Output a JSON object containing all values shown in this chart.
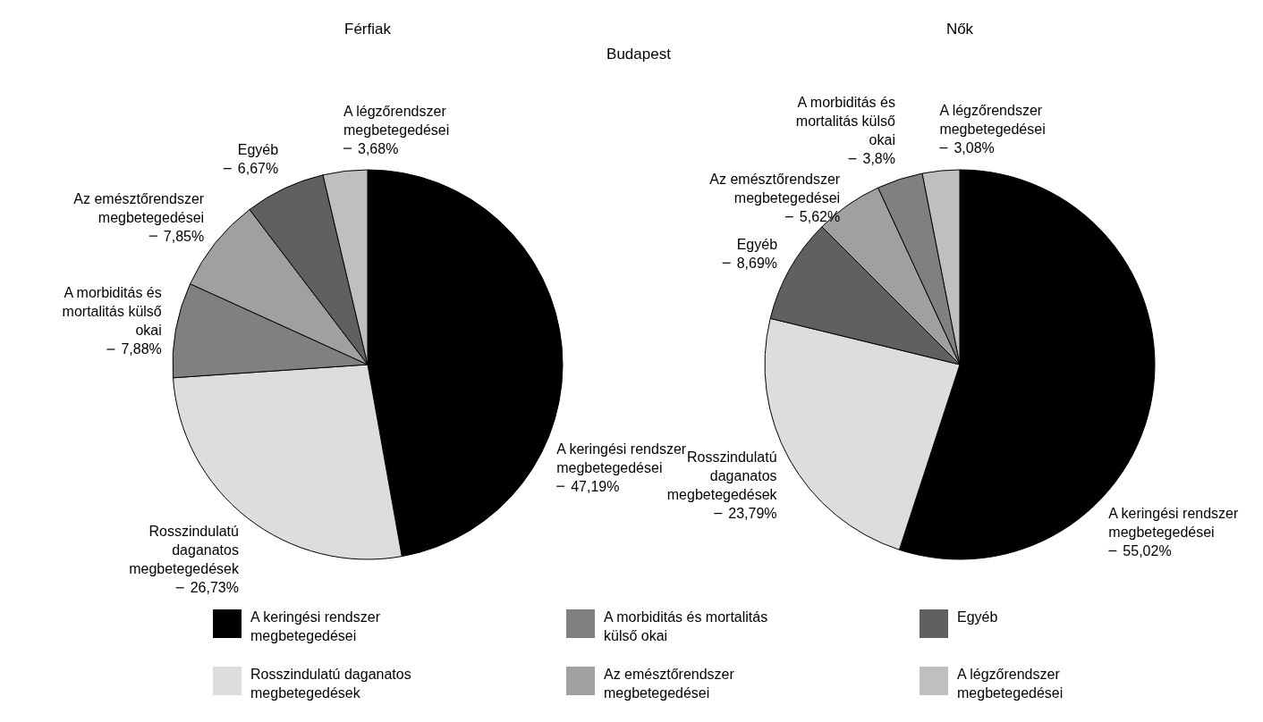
{
  "chart_data": [
    {
      "type": "pie",
      "title": "Férfiak",
      "annotations": [
        "Budapest"
      ],
      "legend": "bottom",
      "categories": [
        "A keringési rendszer megbetegedései",
        "Rosszindulatú daganatos megbetegedések",
        "A morbiditás és mortalitás külső okai",
        "Az emésztőrendszer megbetegedései",
        "Egyéb",
        "A légzőrendszer megbetegedései"
      ],
      "values": [
        47.19,
        26.73,
        7.88,
        7.85,
        6.67,
        3.68
      ],
      "colors": [
        "#000000",
        "#dddddd",
        "#808080",
        "#a0a0a0",
        "#606060",
        "#bfbfbf"
      ],
      "value_labels": [
        "47,19%",
        "26,73%",
        "7,88%",
        "7,85%",
        "6,67%",
        "3,68%"
      ]
    },
    {
      "type": "pie",
      "title": "Nők",
      "categories": [
        "A keringési rendszer megbetegedései",
        "Rosszindulatú daganatos megbetegedések",
        "Egyéb",
        "Az emésztőrendszer megbetegedései",
        "A morbiditás és mortalitás külső okai",
        "A légzőrendszer megbetegedései"
      ],
      "values": [
        55.02,
        23.79,
        8.69,
        5.62,
        3.8,
        3.08
      ],
      "colors": [
        "#000000",
        "#dddddd",
        "#606060",
        "#a0a0a0",
        "#808080",
        "#bfbfbf"
      ],
      "value_labels": [
        "55,02%",
        "23,79%",
        "8,69%",
        "5,62%",
        "3,8%",
        "3,08%"
      ]
    }
  ]
}
